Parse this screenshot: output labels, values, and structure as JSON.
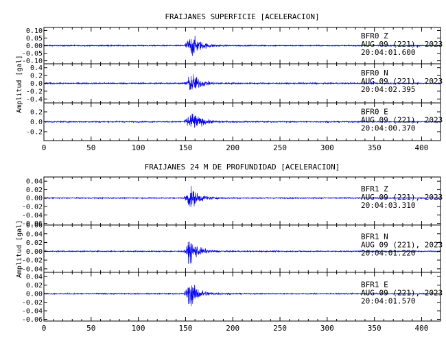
{
  "chart_data": [
    {
      "type": "line",
      "title": "FRAIJANES SUPERFICIE [ACELERACION]",
      "ylabel": "Amplitud [gal]",
      "xlim": [
        0,
        420
      ],
      "xticks": [
        "0",
        "50",
        "100",
        "150",
        "200",
        "250",
        "300",
        "350",
        "400"
      ],
      "line_color": "#0000ff",
      "panels": [
        {
          "station": "BFR0",
          "component": "Z",
          "date": "AUG 09 (221), 2023",
          "time": "20:04:01.600",
          "ylim": [
            -0.12,
            0.12
          ],
          "yticks": [
            "0.10",
            "0.05",
            "0.00",
            "-0.05",
            "-0.10"
          ],
          "yvalues": [
            0.1,
            0.05,
            0.0,
            -0.05,
            -0.1
          ],
          "noise": 0.004,
          "peak": 0.11,
          "onset": 148,
          "peak_time": 157
        },
        {
          "station": "BFR0",
          "component": "N",
          "date": "AUG 09 (221), 2023",
          "time": "20:04:02.395",
          "ylim": [
            -0.5,
            0.5
          ],
          "yticks": [
            "0.4",
            "0.2",
            "0.0",
            "-0.2",
            "-0.4"
          ],
          "yvalues": [
            0.4,
            0.2,
            0.0,
            -0.2,
            -0.4
          ],
          "noise": 0.02,
          "peak": 0.38,
          "onset": 148,
          "peak_time": 157
        },
        {
          "station": "BFR0",
          "component": "E",
          "date": "AUG 09 (221), 2023",
          "time": "20:04:00.370",
          "ylim": [
            -0.38,
            0.38
          ],
          "yticks": [
            "0.2",
            "0.0",
            "-0.2"
          ],
          "yvalues": [
            0.2,
            0.0,
            -0.2
          ],
          "noise": 0.015,
          "peak": 0.3,
          "onset": 148,
          "peak_time": 157
        }
      ]
    },
    {
      "type": "line",
      "title": "FRAIJANES 24 M DE PROFUNDIDAD [ACELERACION]",
      "ylabel": "Amplitud [gal]",
      "xlim": [
        0,
        420
      ],
      "xticks": [
        "0",
        "50",
        "100",
        "150",
        "200",
        "250",
        "300",
        "350",
        "400"
      ],
      "line_color": "#0000ff",
      "panels": [
        {
          "station": "BFR1",
          "component": "Z",
          "date": "AUG 09 (221), 2023",
          "time": "20:04:03.310",
          "ylim": [
            -0.064,
            0.05
          ],
          "yticks": [
            "0.04",
            "0.02",
            "0.00",
            "-0.02",
            "-0.04",
            "-0.06"
          ],
          "yvalues": [
            0.04,
            0.02,
            0.0,
            -0.02,
            -0.04,
            -0.06
          ],
          "noise": 0.0015,
          "peak": 0.04,
          "onset": 148,
          "peak_time": 155
        },
        {
          "station": "BFR1",
          "component": "N",
          "date": "AUG 09 (221), 2023",
          "time": "20:04:01.220",
          "ylim": [
            -0.048,
            0.06
          ],
          "yticks": [
            "0.06",
            "0.04",
            "0.02",
            "0.00",
            "-0.02",
            "-0.04"
          ],
          "yvalues": [
            0.06,
            0.04,
            0.02,
            0.0,
            -0.02,
            -0.04
          ],
          "noise": 0.0015,
          "peak": 0.04,
          "onset": 148,
          "peak_time": 155
        },
        {
          "station": "BFR1",
          "component": "E",
          "date": "AUG 09 (221), 2023",
          "time": "20:04:01.570",
          "ylim": [
            -0.064,
            0.05
          ],
          "yticks": [
            "0.04",
            "0.02",
            "0.00",
            "-0.02",
            "-0.04",
            "-0.06"
          ],
          "yvalues": [
            0.04,
            0.02,
            0.0,
            -0.02,
            -0.04,
            -0.06
          ],
          "noise": 0.0015,
          "peak": 0.045,
          "onset": 148,
          "peak_time": 155
        }
      ]
    }
  ]
}
